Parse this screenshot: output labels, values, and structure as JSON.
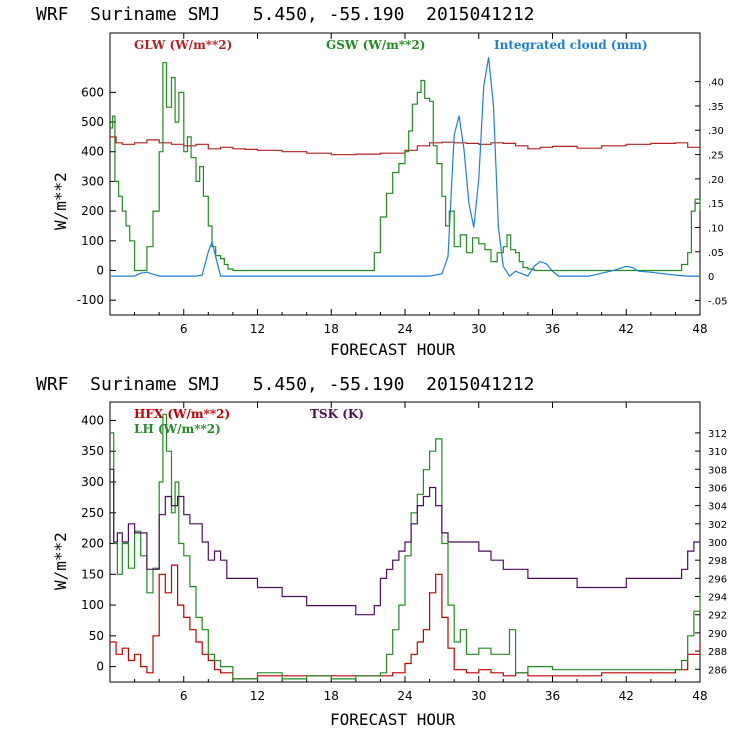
{
  "chart_data": [
    {
      "type": "line",
      "title": "WRF  Suriname SMJ   5.450, -55.190  2015041212",
      "xlabel": "FORECAST HOUR",
      "ylabel": "W/m**2",
      "xlim": [
        0,
        48
      ],
      "ylim": [
        -150,
        800
      ],
      "xticks": [
        6,
        12,
        18,
        24,
        30,
        36,
        42,
        48
      ],
      "yticks": [
        -100,
        0,
        100,
        200,
        300,
        400,
        500,
        600
      ],
      "y2lim": [
        -0.08,
        0.5
      ],
      "y2ticks": [
        -0.05,
        0,
        0.05,
        0.1,
        0.15,
        0.2,
        0.25,
        0.3,
        0.35,
        0.4
      ],
      "y2ticklabels": [
        "-.05",
        "0",
        ".05",
        ".10",
        ".15",
        ".20",
        ".25",
        ".30",
        ".35",
        ".40"
      ],
      "series": [
        {
          "name": "GLW (W/m**2)",
          "color": "#b22222",
          "axis": "left",
          "x": [
            0,
            0.5,
            1,
            2,
            3,
            4,
            5,
            6,
            7,
            8,
            9,
            10,
            11,
            12,
            14,
            16,
            18,
            20,
            22,
            24,
            25,
            26,
            27,
            28,
            29,
            30,
            31,
            32,
            33,
            34,
            35,
            36,
            38,
            40,
            42,
            44,
            46,
            47,
            48
          ],
          "y": [
            450,
            430,
            425,
            430,
            440,
            430,
            425,
            420,
            425,
            410,
            415,
            410,
            408,
            405,
            400,
            395,
            390,
            392,
            395,
            405,
            420,
            430,
            432,
            430,
            428,
            425,
            430,
            428,
            420,
            410,
            415,
            418,
            412,
            420,
            425,
            428,
            430,
            415,
            412
          ]
        },
        {
          "name": "GSW (W/m**2)",
          "color": "#228b22",
          "axis": "left",
          "x": [
            0,
            0.2,
            0.4,
            0.7,
            1,
            1.3,
            1.6,
            2,
            2.5,
            3,
            3.5,
            4,
            4.3,
            4.6,
            5,
            5.3,
            5.6,
            6,
            6.3,
            6.6,
            7,
            7.3,
            7.6,
            8,
            8.3,
            8.6,
            9,
            9.3,
            9.6,
            10,
            21,
            21.5,
            22,
            22.5,
            23,
            23.5,
            24,
            24.3,
            24.6,
            25,
            25.3,
            25.6,
            26,
            26.3,
            26.6,
            27,
            27.3,
            27.6,
            28,
            28.5,
            29,
            29.5,
            30,
            30.5,
            31,
            31.5,
            32,
            32.3,
            32.6,
            33,
            33.3,
            33.6,
            34,
            34.5,
            35,
            46,
            46.5,
            47,
            47.3,
            47.6,
            48
          ],
          "y": [
            480,
            520,
            300,
            250,
            200,
            150,
            100,
            0,
            0,
            80,
            200,
            400,
            700,
            550,
            650,
            500,
            600,
            400,
            450,
            380,
            300,
            350,
            250,
            150,
            80,
            50,
            40,
            20,
            5,
            0,
            0,
            60,
            180,
            260,
            330,
            360,
            400,
            470,
            560,
            600,
            640,
            580,
            570,
            420,
            360,
            250,
            150,
            200,
            80,
            120,
            60,
            110,
            90,
            70,
            30,
            60,
            80,
            120,
            70,
            60,
            30,
            10,
            5,
            0,
            0,
            0,
            20,
            60,
            200,
            240,
            200
          ]
        },
        {
          "name": "Integrated cloud (mm)",
          "color": "#1e7fd8",
          "axis": "right",
          "x": [
            0,
            2,
            2.5,
            3,
            3.5,
            4,
            7,
            7.5,
            8,
            8.3,
            8.6,
            9,
            9.5,
            26,
            27,
            27.5,
            28,
            28.4,
            28.8,
            29.2,
            29.6,
            30,
            30.4,
            30.8,
            31.2,
            31.6,
            32,
            32.5,
            33,
            33.5,
            34,
            34.5,
            35,
            35.5,
            36,
            36.5,
            37,
            39,
            40,
            41,
            42,
            42.5,
            43,
            44,
            45,
            46,
            47,
            48
          ],
          "y": [
            0,
            0,
            0.006,
            0.008,
            0.004,
            0,
            0,
            0.002,
            0.05,
            0.07,
            0.04,
            0,
            0,
            0,
            0.005,
            0.04,
            0.29,
            0.33,
            0.26,
            0.15,
            0.1,
            0.2,
            0.39,
            0.45,
            0.35,
            0.1,
            0.02,
            0,
            0.01,
            0.005,
            0,
            0.02,
            0.03,
            0.025,
            0.01,
            0,
            0,
            0,
            0.006,
            0.012,
            0.02,
            0.018,
            0.01,
            0.008,
            0.005,
            0.002,
            0,
            0
          ]
        }
      ]
    },
    {
      "type": "line",
      "title": "WRF  Suriname SMJ   5.450, -55.190  2015041212",
      "xlabel": "FORECAST HOUR",
      "ylabel": "W/m**2",
      "xlim": [
        0,
        48
      ],
      "ylim": [
        -25,
        430
      ],
      "xticks": [
        6,
        12,
        18,
        24,
        30,
        36,
        42,
        48
      ],
      "yticks": [
        0,
        50,
        100,
        150,
        200,
        250,
        300,
        350,
        400
      ],
      "y2lim": [
        284.6,
        315.4
      ],
      "y2ticks": [
        286,
        288,
        290,
        292,
        294,
        296,
        298,
        300,
        302,
        304,
        306,
        308,
        310,
        312
      ],
      "y2ticklabels": [
        "286",
        "288",
        "290",
        "292",
        "294",
        "296",
        "298",
        "300",
        "302",
        "304",
        "306",
        "308",
        "310",
        "312"
      ],
      "series": [
        {
          "name": "HFX (W/m**2)",
          "color": "#c00000",
          "axis": "left",
          "x": [
            0,
            0.5,
            1,
            1.5,
            2,
            2.5,
            3,
            3.5,
            4,
            4.5,
            5,
            5.5,
            6,
            6.5,
            7,
            7.5,
            8,
            8.5,
            9,
            10,
            12,
            14,
            16,
            18,
            20,
            22,
            23,
            24,
            24.5,
            25,
            25.5,
            26,
            26.5,
            27,
            27.5,
            28,
            29,
            30,
            31,
            32,
            33,
            34,
            36,
            38,
            40,
            42,
            44,
            46,
            47,
            48
          ],
          "y": [
            40,
            20,
            30,
            10,
            20,
            0,
            -10,
            50,
            150,
            120,
            165,
            100,
            80,
            60,
            40,
            20,
            10,
            -5,
            -10,
            -20,
            -15,
            -15,
            -15,
            -15,
            -15,
            -15,
            -10,
            5,
            20,
            40,
            60,
            120,
            150,
            80,
            30,
            -5,
            -10,
            -5,
            -10,
            -15,
            -10,
            -15,
            -15,
            -15,
            -10,
            -10,
            -10,
            -5,
            20,
            40
          ]
        },
        {
          "name": "LH (W/m**2)",
          "color": "#228b22",
          "axis": "left",
          "x": [
            0,
            0.3,
            0.6,
            1,
            1.5,
            2,
            2.5,
            3,
            3.5,
            4,
            4.3,
            4.6,
            5,
            5.3,
            5.6,
            6,
            6.5,
            7,
            7.5,
            8,
            8.5,
            9,
            10,
            12,
            14,
            16,
            18,
            20,
            21,
            22,
            22.5,
            23,
            23.5,
            24,
            24.5,
            25,
            25.5,
            26,
            26.5,
            27,
            27.5,
            28,
            28.5,
            29,
            30,
            31,
            32,
            32.5,
            33,
            34,
            36,
            38,
            40,
            42,
            44,
            46,
            46.5,
            47,
            47.5,
            48
          ],
          "y": [
            380,
            200,
            150,
            200,
            160,
            220,
            180,
            120,
            160,
            300,
            410,
            350,
            250,
            300,
            200,
            180,
            130,
            80,
            60,
            20,
            10,
            0,
            -20,
            -10,
            -20,
            -15,
            -20,
            -15,
            -15,
            -10,
            20,
            60,
            100,
            180,
            250,
            280,
            320,
            350,
            370,
            200,
            100,
            40,
            60,
            20,
            30,
            20,
            20,
            60,
            -10,
            0,
            -5,
            -5,
            -5,
            -5,
            -5,
            -5,
            10,
            50,
            90,
            120
          ]
        },
        {
          "name": "TSK (K)",
          "color": "#4b0f5a",
          "axis": "right",
          "x": [
            0,
            0.3,
            0.6,
            1,
            1.5,
            2,
            3,
            4,
            4.5,
            5,
            5.5,
            6,
            6.5,
            7,
            7.5,
            8,
            8.5,
            9,
            9.5,
            10,
            12,
            14,
            16,
            18,
            20,
            21,
            21.5,
            22,
            22.5,
            23,
            23.5,
            24,
            24.5,
            25,
            25.5,
            26,
            26.5,
            27,
            27.5,
            28,
            29,
            30,
            31,
            32,
            33,
            34,
            36,
            38,
            40,
            42,
            44,
            46,
            46.5,
            47,
            47.5,
            48
          ],
          "y": [
            308,
            300,
            301,
            300,
            302,
            301,
            297,
            303,
            305,
            304,
            305,
            303,
            302,
            302,
            300,
            298,
            299,
            298,
            296,
            296,
            295,
            294,
            293,
            293,
            292,
            292,
            293,
            296,
            297,
            298,
            299,
            300,
            302,
            304,
            305,
            306,
            304,
            301,
            300,
            300,
            300,
            299,
            298,
            297,
            297,
            296,
            296,
            295,
            295,
            296,
            296,
            296,
            297,
            299,
            300,
            300
          ]
        }
      ]
    }
  ]
}
